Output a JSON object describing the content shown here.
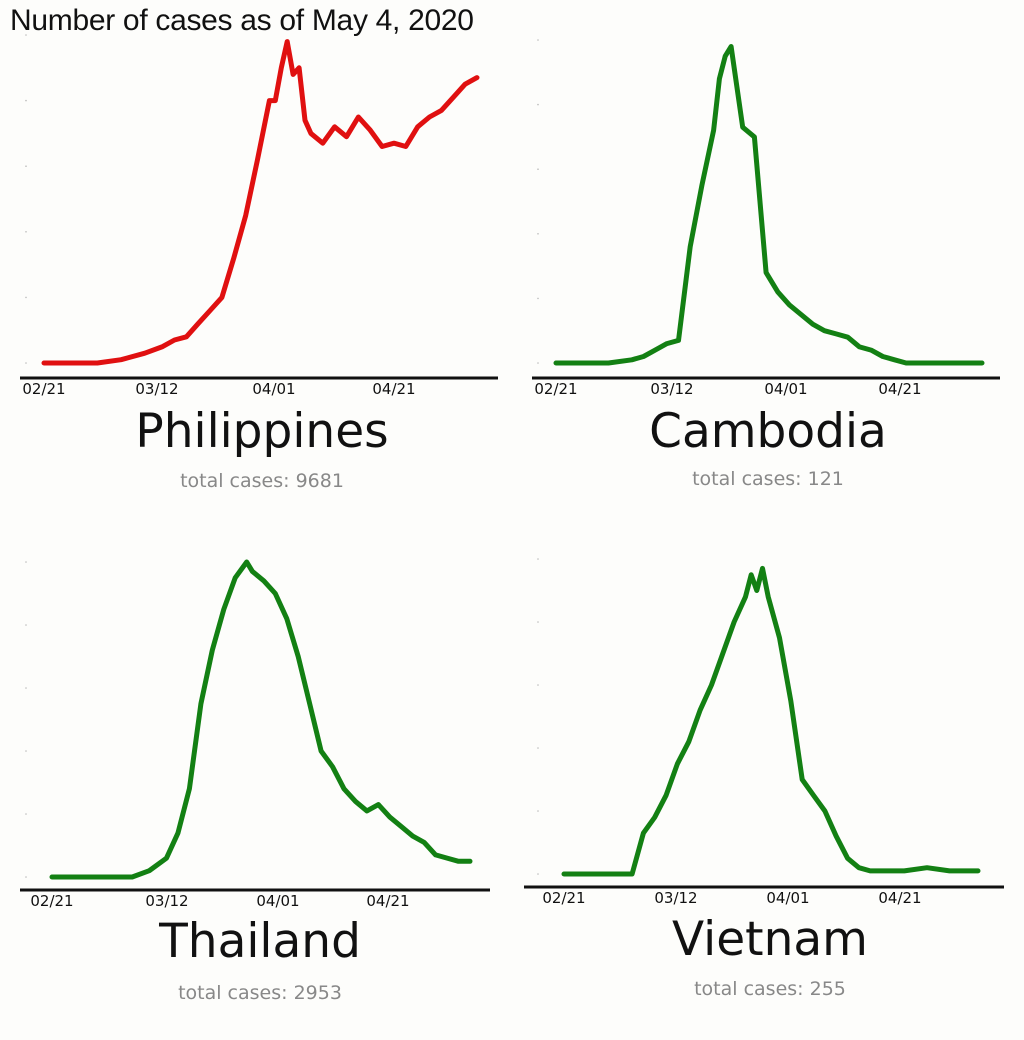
{
  "title": "Number of cases as of May 4, 2020",
  "chart_data": [
    {
      "type": "line",
      "country": "Philippines",
      "total_text": "total cases: 9681",
      "color": "#e01010",
      "x": [
        "02/21",
        "02/25",
        "03/01",
        "03/05",
        "03/09",
        "03/12",
        "03/14",
        "03/16",
        "03/18",
        "03/20",
        "03/22",
        "03/24",
        "03/26",
        "03/28",
        "03/30",
        "03/31",
        "04/01",
        "04/02",
        "04/03",
        "04/04",
        "04/05",
        "04/06",
        "04/08",
        "04/10",
        "04/12",
        "04/14",
        "04/16",
        "04/18",
        "04/20",
        "04/22",
        "04/24",
        "04/26",
        "04/28",
        "04/30",
        "05/02",
        "05/04"
      ],
      "values": [
        0.0,
        0.0,
        0.0,
        0.01,
        0.03,
        0.05,
        0.07,
        0.08,
        0.12,
        0.16,
        0.2,
        0.32,
        0.45,
        0.62,
        0.8,
        0.8,
        0.9,
        0.98,
        0.88,
        0.9,
        0.74,
        0.7,
        0.67,
        0.72,
        0.69,
        0.75,
        0.71,
        0.66,
        0.67,
        0.66,
        0.72,
        0.75,
        0.77,
        0.81,
        0.85,
        0.87
      ],
      "ticks": [
        "02/21",
        "03/12",
        "04/01",
        "04/21"
      ],
      "ylim": [
        0,
        1
      ]
    },
    {
      "type": "line",
      "country": "Cambodia",
      "total_text": "total cases: 121",
      "color": "#138013",
      "x": [
        "02/21",
        "02/25",
        "03/01",
        "03/05",
        "03/07",
        "03/09",
        "03/11",
        "03/13",
        "03/15",
        "03/17",
        "03/19",
        "03/20",
        "03/21",
        "03/22",
        "03/24",
        "03/26",
        "03/28",
        "03/30",
        "04/01",
        "04/03",
        "04/05",
        "04/07",
        "04/09",
        "04/11",
        "04/13",
        "04/15",
        "04/17",
        "04/19",
        "04/21",
        "04/25",
        "05/01",
        "05/04"
      ],
      "values": [
        0.0,
        0.0,
        0.0,
        0.01,
        0.02,
        0.04,
        0.06,
        0.07,
        0.36,
        0.55,
        0.72,
        0.88,
        0.95,
        0.98,
        0.73,
        0.7,
        0.28,
        0.22,
        0.18,
        0.15,
        0.12,
        0.1,
        0.09,
        0.08,
        0.05,
        0.04,
        0.02,
        0.01,
        0.0,
        0.0,
        0.0,
        0.0
      ],
      "ticks": [
        "02/21",
        "03/12",
        "04/01",
        "04/21"
      ],
      "ylim": [
        0,
        1
      ]
    },
    {
      "type": "line",
      "country": "Thailand",
      "total_text": "total cases: 2953",
      "color": "#138013",
      "x": [
        "02/21",
        "02/26",
        "03/02",
        "03/06",
        "03/09",
        "03/12",
        "03/14",
        "03/16",
        "03/18",
        "03/20",
        "03/22",
        "03/24",
        "03/26",
        "03/27",
        "03/29",
        "03/31",
        "04/02",
        "04/04",
        "04/06",
        "04/08",
        "04/10",
        "04/12",
        "04/14",
        "04/16",
        "04/18",
        "04/20",
        "04/22",
        "04/24",
        "04/26",
        "04/28",
        "04/30",
        "05/02",
        "05/04"
      ],
      "values": [
        0.0,
        0.0,
        0.0,
        0.0,
        0.02,
        0.06,
        0.14,
        0.28,
        0.55,
        0.72,
        0.85,
        0.95,
        1.0,
        0.97,
        0.94,
        0.9,
        0.82,
        0.7,
        0.55,
        0.4,
        0.35,
        0.28,
        0.24,
        0.21,
        0.23,
        0.19,
        0.16,
        0.13,
        0.11,
        0.07,
        0.06,
        0.05,
        0.05
      ],
      "ticks": [
        "02/21",
        "03/12",
        "04/01",
        "04/21"
      ],
      "ylim": [
        0,
        1
      ]
    },
    {
      "type": "line",
      "country": "Vietnam",
      "total_text": "total cases: 255",
      "color": "#138013",
      "x": [
        "02/21",
        "02/25",
        "03/01",
        "03/04",
        "03/06",
        "03/08",
        "03/10",
        "03/12",
        "03/14",
        "03/16",
        "03/18",
        "03/20",
        "03/22",
        "03/24",
        "03/25",
        "03/26",
        "03/27",
        "03/28",
        "03/30",
        "04/01",
        "04/03",
        "04/05",
        "04/07",
        "04/09",
        "04/11",
        "04/13",
        "04/15",
        "04/17",
        "04/19",
        "04/21",
        "04/25",
        "04/29",
        "05/02",
        "05/04"
      ],
      "values": [
        0.0,
        0.0,
        0.0,
        0.0,
        0.13,
        0.18,
        0.25,
        0.35,
        0.42,
        0.52,
        0.6,
        0.7,
        0.8,
        0.88,
        0.95,
        0.9,
        0.97,
        0.88,
        0.75,
        0.55,
        0.3,
        0.25,
        0.2,
        0.12,
        0.05,
        0.02,
        0.01,
        0.01,
        0.01,
        0.01,
        0.02,
        0.01,
        0.01,
        0.01
      ],
      "ticks": [
        "02/21",
        "03/12",
        "04/01",
        "04/21"
      ],
      "ylim": [
        0,
        1
      ]
    }
  ]
}
